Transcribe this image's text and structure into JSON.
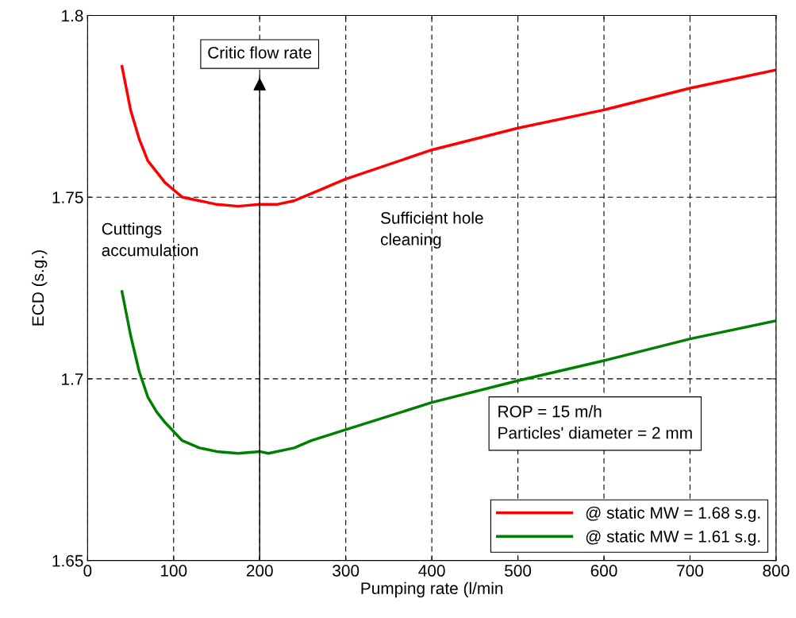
{
  "chart_data": {
    "type": "line",
    "xlabel": "Pumping rate (l/min",
    "ylabel": "ECD (s.g.)",
    "xlim": [
      0,
      800
    ],
    "xticks": [
      0,
      100,
      200,
      300,
      400,
      500,
      600,
      700,
      800
    ],
    "ylim": [
      1.65,
      1.8
    ],
    "yticks": [
      1.65,
      1.7,
      1.75,
      1.8
    ],
    "grid": true,
    "legend": "bottom right",
    "line_style": "solid",
    "series": [
      {
        "name": "@ static MW = 1.68 s.g.",
        "color": "#ff0000",
        "x": [
          40,
          50,
          60,
          70,
          80,
          90,
          100,
          110,
          130,
          150,
          175,
          200,
          220,
          240,
          250,
          270,
          290,
          300,
          400,
          500,
          600,
          700,
          800
        ],
        "values": [
          1.786,
          1.774,
          1.766,
          1.76,
          1.757,
          1.754,
          1.752,
          1.75,
          1.749,
          1.748,
          1.7475,
          1.748,
          1.748,
          1.749,
          1.75,
          1.752,
          1.754,
          1.755,
          1.763,
          1.769,
          1.774,
          1.78,
          1.785
        ]
      },
      {
        "name": "@ static MW = 1.61 s.g.",
        "color": "#008000",
        "x": [
          40,
          50,
          60,
          70,
          80,
          90,
          100,
          110,
          130,
          150,
          175,
          200,
          210,
          240,
          260,
          300,
          400,
          500,
          600,
          700,
          800
        ],
        "values": [
          1.724,
          1.712,
          1.702,
          1.695,
          1.691,
          1.688,
          1.6855,
          1.683,
          1.681,
          1.68,
          1.6795,
          1.68,
          1.6795,
          1.681,
          1.683,
          1.686,
          1.6935,
          1.6995,
          1.705,
          1.711,
          1.716
        ]
      }
    ],
    "ref_lines": [
      {
        "axis": "x",
        "value": 200,
        "label": "Critic flow rate",
        "color": "#000000"
      }
    ],
    "annotations": [
      "Cuttings\naccumulation",
      "Sufficient hole\ncleaning",
      "ROP = 15 m/h\nParticles' diameter = 2 mm"
    ]
  }
}
